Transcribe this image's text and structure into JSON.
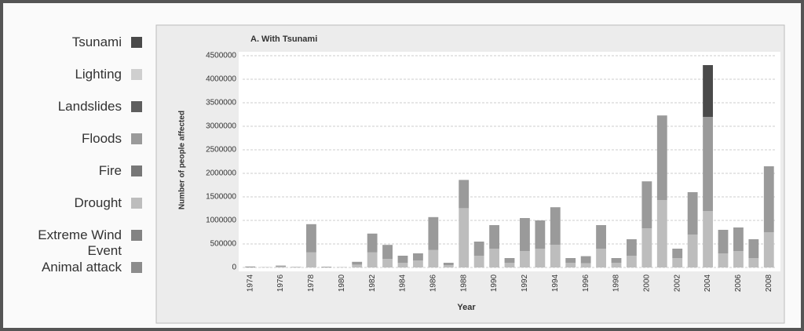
{
  "chart_data": {
    "type": "stacked_bar",
    "title": "A. With Tsunami",
    "x_label": "Year",
    "y_label": "Number of people affected",
    "categories": [
      "1974",
      null,
      "1976",
      null,
      "1978",
      null,
      "1980",
      null,
      "1982",
      null,
      "1984",
      null,
      "1986",
      null,
      "1988",
      null,
      "1990",
      null,
      "1992",
      null,
      "1994",
      null,
      "1996",
      null,
      "1998",
      null,
      "2000",
      null,
      "2002",
      null,
      "2004",
      null,
      "2006",
      null,
      "2008"
    ],
    "ylim": [
      0,
      4500000
    ],
    "yticks": [
      0,
      500000,
      1000000,
      1500000,
      2000000,
      2500000,
      3000000,
      3500000,
      4000000,
      4500000
    ],
    "grid": true,
    "series": [
      {
        "name": "Tsunami",
        "color": "#4a4a4a",
        "values": [
          0,
          0,
          0,
          0,
          0,
          0,
          0,
          0,
          0,
          0,
          0,
          0,
          0,
          0,
          0,
          0,
          0,
          0,
          0,
          0,
          0,
          0,
          0,
          0,
          0,
          0,
          0,
          0,
          0,
          0,
          1100000,
          0,
          0,
          0,
          0
        ]
      },
      {
        "name": "Lighting",
        "color": "#cfcfcf",
        "values": [
          0,
          0,
          0,
          0,
          0,
          0,
          0,
          0,
          0,
          0,
          0,
          0,
          0,
          0,
          0,
          0,
          0,
          0,
          0,
          0,
          0,
          0,
          0,
          0,
          0,
          0,
          0,
          0,
          0,
          0,
          0,
          0,
          0,
          0,
          0
        ]
      },
      {
        "name": "Landslides",
        "color": "#5e5e5e",
        "values": [
          0,
          0,
          0,
          0,
          0,
          0,
          0,
          0,
          0,
          0,
          0,
          0,
          0,
          0,
          0,
          0,
          0,
          0,
          0,
          0,
          0,
          0,
          0,
          0,
          0,
          0,
          0,
          0,
          0,
          0,
          0,
          0,
          0,
          0,
          0
        ]
      },
      {
        "name": "Floods",
        "color": "#9a9a9a",
        "values": [
          20000,
          5000,
          20000,
          10000,
          600000,
          15000,
          5000,
          60000,
          400000,
          300000,
          150000,
          150000,
          700000,
          50000,
          600000,
          300000,
          500000,
          100000,
          700000,
          600000,
          800000,
          100000,
          150000,
          500000,
          100000,
          350000,
          1000000,
          1800000,
          200000,
          900000,
          2000000,
          500000,
          500000,
          400000,
          1400000
        ]
      },
      {
        "name": "Fire",
        "color": "#777777",
        "values": [
          0,
          0,
          0,
          0,
          0,
          0,
          0,
          0,
          0,
          0,
          0,
          0,
          0,
          0,
          0,
          0,
          0,
          0,
          0,
          0,
          0,
          0,
          0,
          0,
          0,
          0,
          0,
          0,
          0,
          0,
          0,
          0,
          0,
          0,
          0
        ]
      },
      {
        "name": "Drought",
        "color": "#bdbdbd",
        "values": [
          0,
          0,
          20000,
          0,
          320000,
          0,
          0,
          60000,
          320000,
          180000,
          100000,
          150000,
          370000,
          50000,
          1260000,
          250000,
          400000,
          100000,
          350000,
          400000,
          480000,
          100000,
          90000,
          400000,
          100000,
          250000,
          830000,
          1430000,
          200000,
          700000,
          1200000,
          300000,
          350000,
          200000,
          750000
        ]
      },
      {
        "name": "Extreme Wind Event",
        "color": "#838383",
        "values": [
          0,
          0,
          0,
          0,
          0,
          0,
          0,
          0,
          0,
          0,
          0,
          0,
          0,
          0,
          0,
          0,
          0,
          0,
          0,
          0,
          0,
          0,
          0,
          0,
          0,
          0,
          0,
          0,
          0,
          0,
          0,
          0,
          0,
          0,
          0
        ]
      },
      {
        "name": "Animal attack",
        "color": "#8c8c8c",
        "values": [
          0,
          0,
          0,
          0,
          0,
          0,
          0,
          0,
          0,
          0,
          0,
          0,
          0,
          0,
          0,
          0,
          0,
          0,
          0,
          0,
          0,
          0,
          0,
          0,
          0,
          0,
          0,
          0,
          0,
          0,
          0,
          0,
          0,
          0,
          0
        ]
      }
    ]
  }
}
